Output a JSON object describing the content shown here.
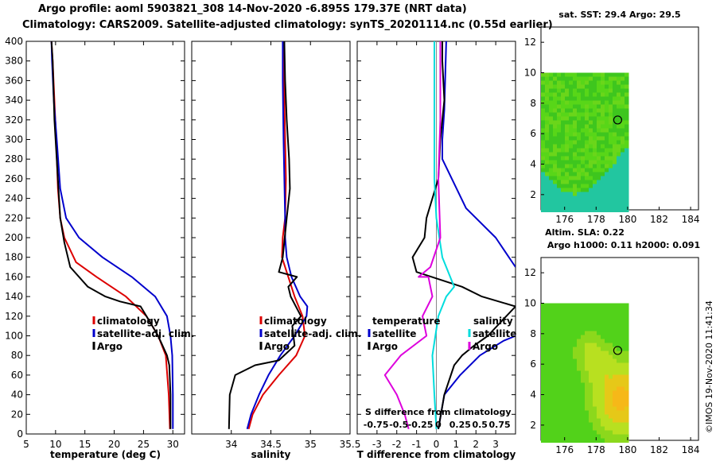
{
  "header": {
    "line1": "Argo profile: aoml 5903821_308 14-Nov-2020 -6.895S 179.37E (NRT data)",
    "line2": "Climatology: CARS2009. Satellite-adjusted climatology: synTS_20201114.nc (0.55d earlier)"
  },
  "watermark": "©IMOS 19-Nov-2020 11:41:34",
  "colors": {
    "climatology": "#dd0000",
    "satellite": "#0000cc",
    "argo": "#000000",
    "sal_satellite": "#00dddd",
    "sal_argo": "#dd00dd"
  },
  "chart_data": [
    {
      "type": "line",
      "name": "temperature",
      "xlabel": "temperature (deg C)",
      "ylabel": "",
      "xlim": [
        5,
        32
      ],
      "ylim": [
        400,
        0
      ],
      "xticks": [
        5,
        10,
        15,
        20,
        25,
        30
      ],
      "yticks": [
        0,
        20,
        40,
        60,
        80,
        100,
        120,
        140,
        160,
        180,
        200,
        220,
        240,
        260,
        280,
        300,
        320,
        340,
        360,
        380,
        400
      ],
      "legend": [
        "climatology",
        "satellite-adj. clim.",
        "Argo"
      ],
      "series": [
        {
          "name": "climatology",
          "color": "climatology",
          "x": [
            29.5,
            29.3,
            28.8,
            27.5,
            25.5,
            22,
            17,
            13.5,
            11.5,
            10.8,
            10.4,
            10.1,
            9.8,
            9.5,
            9.3
          ],
          "y": [
            5,
            40,
            80,
            100,
            120,
            140,
            160,
            175,
            200,
            220,
            250,
            300,
            340,
            380,
            400
          ]
        },
        {
          "name": "satellite-adj. clim.",
          "color": "satellite",
          "x": [
            30,
            30,
            29.9,
            29.6,
            29,
            27,
            23,
            18,
            14,
            11.8,
            10.8,
            10.2,
            9.7,
            9.4,
            9.3
          ],
          "y": [
            5,
            40,
            80,
            100,
            120,
            140,
            160,
            180,
            200,
            220,
            250,
            300,
            340,
            380,
            400
          ]
        },
        {
          "name": "Argo",
          "color": "argo",
          "x": [
            29.6,
            29.6,
            29.4,
            29,
            27.5,
            25.5,
            24.5,
            21,
            18.5,
            15.5,
            12.5,
            11.5,
            10.8,
            10.5,
            10.2,
            9.8,
            9.5,
            9.3
          ],
          "y": [
            5,
            40,
            70,
            80,
            100,
            120,
            130,
            135,
            140,
            150,
            170,
            195,
            220,
            250,
            280,
            320,
            380,
            400
          ]
        }
      ]
    },
    {
      "type": "line",
      "name": "salinity",
      "xlabel": "salinity",
      "xlim": [
        33.5,
        35.5
      ],
      "ylim": [
        400,
        0
      ],
      "xticks": [
        34,
        34.5,
        35,
        35.5
      ],
      "xtick_labels": [
        "34",
        "34.5",
        "35",
        "35.5"
      ],
      "legend": [
        "climatology",
        "satellite-adj. clim.",
        "Argo"
      ],
      "series": [
        {
          "name": "climatology",
          "color": "climatology",
          "x": [
            34.22,
            34.27,
            34.4,
            34.6,
            34.82,
            34.93,
            34.9,
            34.8,
            34.72,
            34.64,
            34.65,
            34.68,
            34.69,
            34.68,
            34.67,
            34.66,
            34.65
          ],
          "y": [
            5,
            20,
            40,
            60,
            80,
            100,
            120,
            140,
            160,
            180,
            200,
            220,
            260,
            300,
            340,
            380,
            400
          ]
        },
        {
          "name": "satellite-adj. clim.",
          "color": "satellite",
          "x": [
            34.2,
            34.25,
            34.35,
            34.47,
            34.62,
            34.8,
            34.95,
            34.96,
            34.87,
            34.76,
            34.7,
            34.68,
            34.68,
            34.67,
            34.66,
            34.65,
            34.65
          ],
          "y": [
            5,
            20,
            40,
            60,
            80,
            100,
            120,
            130,
            140,
            160,
            180,
            200,
            220,
            260,
            300,
            360,
            400
          ]
        },
        {
          "name": "Argo",
          "color": "argo",
          "x": [
            33.97,
            33.98,
            34.05,
            34.3,
            34.6,
            34.8,
            34.77,
            34.88,
            34.75,
            34.72,
            34.83,
            34.6,
            34.65,
            34.7,
            34.74,
            34.73,
            34.7,
            34.68,
            34.67
          ],
          "y": [
            5,
            40,
            60,
            70,
            75,
            90,
            110,
            120,
            140,
            150,
            160,
            165,
            180,
            220,
            250,
            280,
            320,
            360,
            400
          ]
        }
      ]
    },
    {
      "type": "line",
      "name": "differences",
      "xlabel": "T difference from climatology",
      "xlim": [
        -4,
        4
      ],
      "ylim": [
        400,
        0
      ],
      "xticks": [
        -3,
        -2,
        -1,
        0,
        1,
        2,
        3
      ],
      "xtick_labels": [
        "-3",
        "-2",
        "-1",
        "0",
        "1",
        "2",
        "3"
      ],
      "top_axis_label": "S difference from climatology",
      "top_axis_tick_labels": [
        "-0.75",
        "-0.5",
        "-0.25",
        "0",
        "0.25",
        "0.5",
        "0.75"
      ],
      "top_axis_ticks_T_units": [
        -3,
        -2,
        -1,
        0,
        1,
        2,
        3
      ],
      "legend_left": {
        "title": "temperature",
        "items": [
          "satellite",
          "Argo"
        ]
      },
      "legend_right": {
        "title": "salinity",
        "items": [
          "satellite",
          "Argo"
        ]
      },
      "series": [
        {
          "name": "T satellite",
          "color": "satellite",
          "x": [
            0.1,
            0.4,
            1.2,
            2.2,
            3.4,
            4.0
          ],
          "y": [
            5,
            40,
            60,
            80,
            95,
            100
          ],
          "x2": [
            0.5,
            0.4,
            0.3,
            0.3,
            1.5,
            3.0,
            4.0
          ],
          "y2": [
            400,
            330,
            300,
            280,
            230,
            200,
            170
          ]
        },
        {
          "name": "T Argo",
          "color": "argo",
          "x": [
            0.1,
            0.4,
            0.9,
            1.3,
            1.9,
            2.6,
            3.3,
            4.0,
            2.3,
            1.3,
            -1.0,
            -1.2,
            -0.6,
            -0.5,
            -0.2,
            0.1,
            0.2,
            0.4,
            0.3,
            0.3
          ],
          "y": [
            5,
            40,
            70,
            80,
            90,
            100,
            115,
            130,
            140,
            150,
            165,
            180,
            200,
            220,
            240,
            260,
            300,
            340,
            380,
            400
          ]
        },
        {
          "name": "S satellite",
          "color": "sal_satellite",
          "x": [
            0,
            -0.1,
            -0.2,
            0.1,
            0.5,
            0.9,
            0.3,
            0,
            -0.1,
            -0.1,
            -0.1,
            -0.1
          ],
          "y": [
            5,
            40,
            80,
            120,
            140,
            150,
            180,
            220,
            260,
            300,
            360,
            400
          ]
        },
        {
          "name": "S Argo",
          "color": "sal_argo",
          "x": [
            -1.4,
            -1.6,
            -2.0,
            -2.6,
            -1.8,
            -0.5,
            -0.7,
            -0.2,
            -0.4,
            -0.9,
            -0.3,
            0.2,
            0.1,
            0.2,
            0.2
          ],
          "y": [
            5,
            20,
            40,
            60,
            80,
            100,
            120,
            140,
            160,
            160,
            170,
            200,
            260,
            320,
            400
          ]
        }
      ]
    },
    {
      "type": "heatmap",
      "name": "sst_map",
      "title": "sat. SST: 29.4 Argo: 29.5",
      "xlim": [
        174.5,
        184.5
      ],
      "ylim": [
        1,
        13
      ],
      "xticks": [
        176,
        178,
        180,
        182,
        184
      ],
      "yticks": [
        2,
        4,
        6,
        8,
        10,
        12
      ],
      "data_extent": {
        "x": [
          174.5,
          180
        ],
        "y": [
          1,
          10
        ]
      },
      "argo_position": {
        "lon": 179.37,
        "lat": 6.9
      },
      "colors": {
        "main": "#58d618",
        "alt": "#3ec61e",
        "low": "#22c6a0"
      }
    },
    {
      "type": "heatmap",
      "name": "sla_map",
      "title": "Altim. SLA: 0.22",
      "subtitle": "Argo h1000: 0.11 h2000: 0.091",
      "xlim": [
        174.5,
        184.5
      ],
      "ylim": [
        1,
        13
      ],
      "xticks": [
        176,
        178,
        180,
        182,
        184
      ],
      "yticks": [
        2,
        4,
        6,
        8,
        10,
        12
      ],
      "data_extent": {
        "x": [
          174.5,
          180
        ],
        "y": [
          1,
          10
        ]
      },
      "argo_position": {
        "lon": 179.37,
        "lat": 6.9
      },
      "colors": {
        "base": "#52d21a",
        "mid": "#b8e020",
        "hot": "#f6b818"
      }
    }
  ]
}
